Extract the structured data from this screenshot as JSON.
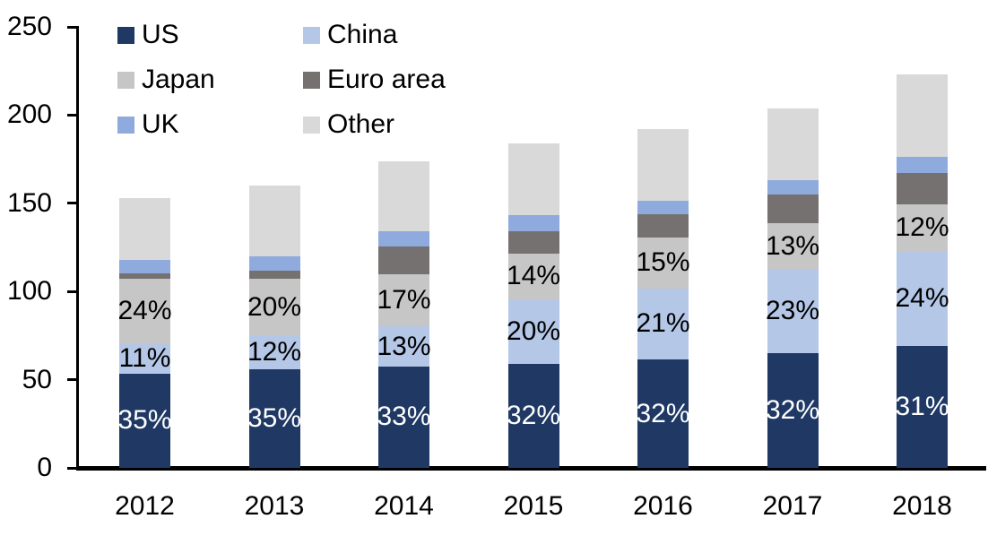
{
  "chart_data": {
    "type": "bar",
    "stacked": true,
    "title": "",
    "xlabel": "",
    "ylabel": "",
    "categories": [
      "2012",
      "2013",
      "2014",
      "2015",
      "2016",
      "2017",
      "2018"
    ],
    "totals": [
      153,
      160,
      174,
      184,
      192,
      204,
      223
    ],
    "values_are": "percent_of_total",
    "series": [
      {
        "name": "US",
        "color": "#1f3864",
        "percent": [
          35,
          35,
          33,
          32,
          32,
          32,
          31
        ],
        "show_percent_labels": true,
        "label_color": "#ffffff"
      },
      {
        "name": "China",
        "color": "#b4c7e7",
        "percent": [
          11,
          12,
          13,
          20,
          21,
          23,
          24
        ],
        "show_percent_labels": true,
        "label_color": "#000000"
      },
      {
        "name": "Japan",
        "color": "#c6c6c6",
        "percent": [
          24,
          20,
          17,
          14,
          15,
          13,
          12
        ],
        "show_percent_labels": true,
        "label_color": "#000000"
      },
      {
        "name": "Euro area",
        "color": "#767171",
        "percent": [
          2,
          3,
          9,
          7,
          7,
          8,
          8
        ],
        "show_percent_labels": false,
        "label_color": "#000000"
      },
      {
        "name": "UK",
        "color": "#8faadc",
        "percent": [
          5,
          5,
          5,
          5,
          4,
          4,
          4
        ],
        "show_percent_labels": false,
        "label_color": "#000000"
      },
      {
        "name": "Other",
        "color": "#d9d9d9",
        "percent": [
          23,
          25,
          23,
          22,
          21,
          20,
          21
        ],
        "show_percent_labels": false,
        "label_color": "#000000"
      }
    ],
    "ylim": [
      0,
      250
    ],
    "yticks": [
      0,
      50,
      100,
      150,
      200,
      250
    ],
    "grid": false,
    "legend_position": "top-left-inside",
    "legend_columns": 2,
    "axis_color": "#000000",
    "background_color": "#ffffff"
  }
}
